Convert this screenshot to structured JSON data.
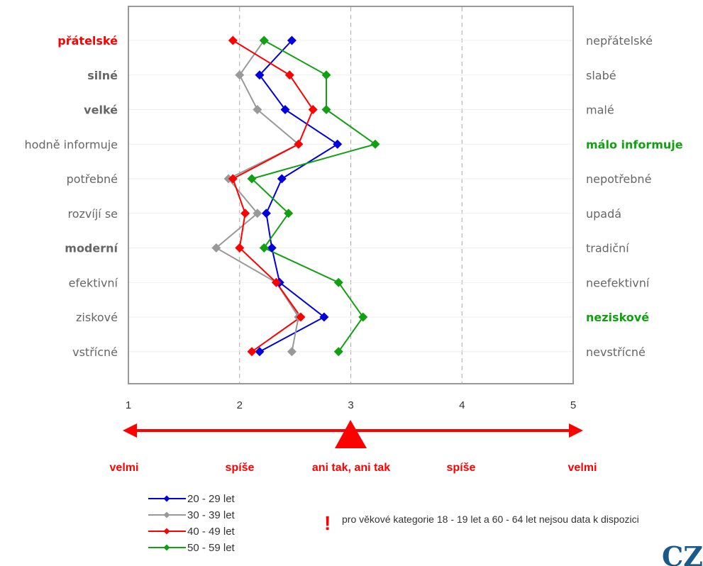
{
  "chart_data": {
    "type": "line",
    "orientation": "horizontal-profile",
    "xlim": [
      1,
      5
    ],
    "x_ticks": [
      "1",
      "2",
      "3",
      "4",
      "5"
    ],
    "left_labels": [
      {
        "text": "přátelské",
        "style": "red-bold"
      },
      {
        "text": "silné",
        "style": "gray-bold"
      },
      {
        "text": "velké",
        "style": "gray-bold"
      },
      {
        "text": "hodně informuje",
        "style": "normal"
      },
      {
        "text": "potřebné",
        "style": "normal"
      },
      {
        "text": "rozvíjí se",
        "style": "normal"
      },
      {
        "text": "moderní",
        "style": "gray-bold"
      },
      {
        "text": "efektivní",
        "style": "normal"
      },
      {
        "text": "ziskové",
        "style": "normal"
      },
      {
        "text": "vstřícné",
        "style": "normal"
      }
    ],
    "right_labels": [
      {
        "text": "nepřátelské",
        "style": "normal"
      },
      {
        "text": "slabé",
        "style": "normal"
      },
      {
        "text": "malé",
        "style": "normal"
      },
      {
        "text": "málo informuje",
        "style": "green-bold"
      },
      {
        "text": "nepotřebné",
        "style": "normal"
      },
      {
        "text": "upadá",
        "style": "normal"
      },
      {
        "text": "tradiční",
        "style": "normal"
      },
      {
        "text": "neefektivní",
        "style": "normal"
      },
      {
        "text": "neziskové",
        "style": "green-bold"
      },
      {
        "text": "nevstřícné",
        "style": "normal"
      }
    ],
    "series": [
      {
        "name": "20 - 29 let",
        "color": "#0000dd",
        "values": [
          2.47,
          2.18,
          2.41,
          2.88,
          2.38,
          2.24,
          2.29,
          2.36,
          2.76,
          2.18
        ]
      },
      {
        "name": "30 - 39 let",
        "color": "#999999",
        "values": [
          2.22,
          2.0,
          2.16,
          2.53,
          1.9,
          2.16,
          1.79,
          2.33,
          2.53,
          2.47
        ]
      },
      {
        "name": "40 - 49 let",
        "color": "#ff0000",
        "values": [
          1.94,
          2.45,
          2.66,
          2.53,
          1.94,
          2.05,
          2.0,
          2.33,
          2.55,
          2.11
        ]
      },
      {
        "name": "50 - 59 let",
        "color": "#11a011",
        "values": [
          2.22,
          2.78,
          2.78,
          3.22,
          2.11,
          2.44,
          2.22,
          2.89,
          3.11,
          2.89
        ]
      }
    ],
    "scale_labels": [
      "velmi",
      "spíše",
      "ani tak, ani tak",
      "spíše",
      "velmi"
    ],
    "grid": "dashed-vertical",
    "legend_position": "bottom-left"
  },
  "note": {
    "icon": "exclamation-icon",
    "text": "pro věkové kategorie 18 - 19 let a 60 - 64 let nejsou data k dispozici"
  },
  "logo_text": "CZ",
  "colors": {
    "accent": "#ff0000",
    "positive": "#11a011",
    "neutral": "#666666",
    "frame": "#999999"
  }
}
